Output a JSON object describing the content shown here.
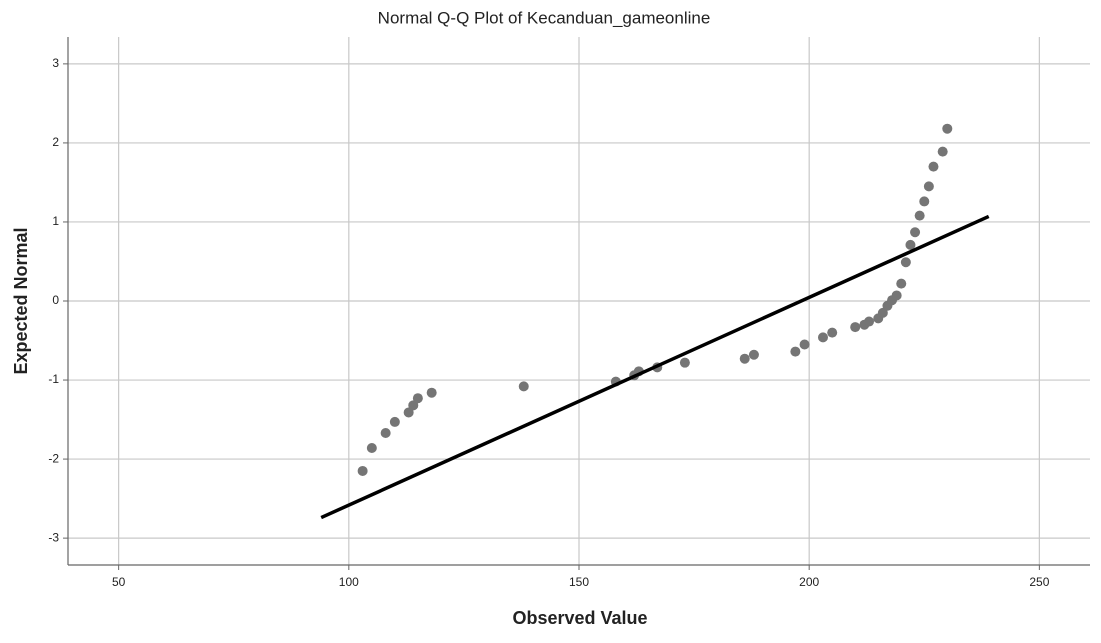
{
  "chart_data": {
    "type": "scatter",
    "title": "Normal Q-Q Plot of Kecanduan_gameonline",
    "x_label": "Observed Value",
    "y_label": "Expected Normal",
    "xlim": [
      39,
      261
    ],
    "ylim": [
      -3.34,
      3.34
    ],
    "xticks": [
      50,
      100,
      150,
      200,
      250
    ],
    "yticks": [
      -3,
      -2,
      -1,
      0,
      1,
      2,
      3
    ],
    "grid": true,
    "color": "#757575",
    "line_color": "#000000",
    "x": [
      103,
      105,
      108,
      110,
      113,
      114,
      115,
      118,
      138,
      158,
      162,
      163,
      167,
      173,
      186,
      188,
      197,
      199,
      203,
      205,
      210,
      212,
      213,
      215,
      216,
      217,
      218,
      219,
      220,
      221,
      222,
      223,
      224,
      225,
      226,
      227,
      229,
      230
    ],
    "values": [
      -2.15,
      -1.86,
      -1.67,
      -1.53,
      -1.41,
      -1.32,
      -1.23,
      -1.16,
      -1.08,
      -1.02,
      -0.94,
      -0.89,
      -0.84,
      -0.78,
      -0.73,
      -0.68,
      -0.64,
      -0.55,
      -0.46,
      -0.4,
      -0.33,
      -0.3,
      -0.26,
      -0.22,
      -0.15,
      -0.06,
      0.01,
      0.07,
      0.22,
      0.49,
      0.71,
      0.87,
      1.08,
      1.26,
      1.45,
      1.7,
      1.89,
      2.18
    ],
    "reference_line": {
      "x": [
        94,
        239
      ],
      "values": [
        -2.74,
        1.07
      ]
    }
  }
}
